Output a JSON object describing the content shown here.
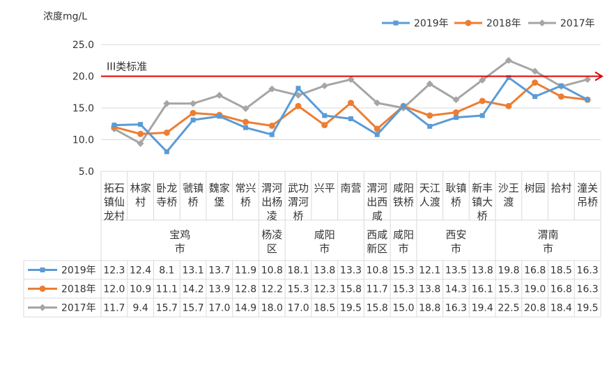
{
  "chart_data": {
    "type": "line",
    "ylabel": "浓度mg/L",
    "ylim": [
      5.0,
      25.0
    ],
    "yticks": [
      "5.0",
      "10.0",
      "15.0",
      "20.0",
      "25.0"
    ],
    "grid": true,
    "legend_position": "top-right",
    "categories": [
      [
        "拓石",
        "镇仙",
        "龙村"
      ],
      [
        "林家",
        "村"
      ],
      [
        "卧龙",
        "寺桥"
      ],
      [
        "虢镇",
        "桥"
      ],
      [
        "魏家",
        "堡"
      ],
      [
        "常兴",
        "桥"
      ],
      [
        "渭河",
        "出杨",
        "凌"
      ],
      [
        "武功",
        "渭河",
        "桥"
      ],
      [
        "兴平"
      ],
      [
        "南营"
      ],
      [
        "渭河",
        "出西",
        "咸"
      ],
      [
        "咸阳",
        "铁桥"
      ],
      [
        "天江",
        "人渡"
      ],
      [
        "耿镇",
        "桥"
      ],
      [
        "新丰",
        "镇大",
        "桥"
      ],
      [
        "沙王",
        "渡"
      ],
      [
        "树园"
      ],
      [
        "拾村"
      ],
      [
        "潼关",
        "吊桥"
      ]
    ],
    "groups": [
      {
        "label": [
          "宝鸡",
          "市"
        ],
        "span": 6
      },
      {
        "label": [
          "杨凌",
          "区"
        ],
        "span": 1
      },
      {
        "label": [
          "咸阳",
          "市"
        ],
        "span": 3
      },
      {
        "label": [
          "西咸",
          "新区"
        ],
        "span": 1
      },
      {
        "label": [
          "咸阳",
          "市"
        ],
        "span": 1
      },
      {
        "label": [
          "西安",
          "市"
        ],
        "span": 3
      },
      {
        "label": [
          "渭南",
          "市"
        ],
        "span": 4
      }
    ],
    "series": [
      {
        "name": "2019年",
        "color": "#5B9BD5",
        "marker": "square",
        "values": [
          12.3,
          12.4,
          8.1,
          13.1,
          13.7,
          11.9,
          10.8,
          18.1,
          13.8,
          13.3,
          10.8,
          15.3,
          12.1,
          13.5,
          13.8,
          19.8,
          16.8,
          18.5,
          16.3
        ],
        "labels": [
          "12.3",
          "12.4",
          "8.1",
          "13.1",
          "13.7",
          "11.9",
          "10.8",
          "18.1",
          "13.8",
          "13.3",
          "10.8",
          "15.3",
          "12.1",
          "13.5",
          "13.8",
          "19.8",
          "16.8",
          "18.5",
          "16.3"
        ]
      },
      {
        "name": "2018年",
        "color": "#ED7D31",
        "marker": "circle",
        "values": [
          12.0,
          10.9,
          11.1,
          14.2,
          13.9,
          12.8,
          12.2,
          15.3,
          12.3,
          15.8,
          11.7,
          15.3,
          13.8,
          14.3,
          16.1,
          15.3,
          19.0,
          16.8,
          16.3
        ],
        "labels": [
          "12.0",
          "10.9",
          "11.1",
          "14.2",
          "13.9",
          "12.8",
          "12.2",
          "15.3",
          "12.3",
          "15.8",
          "11.7",
          "15.3",
          "13.8",
          "14.3",
          "16.1",
          "15.3",
          "19.0",
          "16.8",
          "16.3"
        ]
      },
      {
        "name": "2017年",
        "color": "#A5A5A5",
        "marker": "diamond",
        "values": [
          11.7,
          9.4,
          15.7,
          15.7,
          17.0,
          14.9,
          18.0,
          17.0,
          18.5,
          19.5,
          15.8,
          15.0,
          18.8,
          16.3,
          19.4,
          22.5,
          20.8,
          18.4,
          19.5
        ],
        "labels": [
          "11.7",
          "9.4",
          "15.7",
          "15.7",
          "17.0",
          "14.9",
          "18.0",
          "17.0",
          "18.5",
          "19.5",
          "15.8",
          "15.0",
          "18.8",
          "16.3",
          "19.4",
          "22.5",
          "20.8",
          "18.4",
          "19.5"
        ]
      }
    ],
    "reference_line": {
      "label": "III类标准",
      "value": 20.0,
      "color": "#E00000"
    }
  }
}
